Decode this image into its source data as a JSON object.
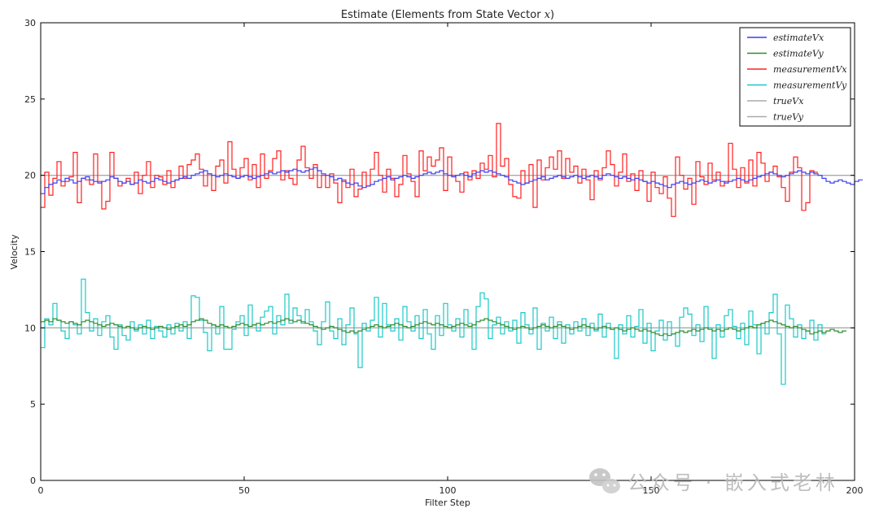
{
  "chart_data": {
    "type": "line",
    "title": "Estimate (Elements from State Vector ",
    "title_math": "x",
    "title_close": ")",
    "xlabel": "Filter Step",
    "ylabel": "Velocity",
    "xlim": [
      0,
      200
    ],
    "ylim": [
      0,
      30
    ],
    "x_ticks": [
      0,
      50,
      100,
      150,
      200
    ],
    "y_ticks": [
      0,
      5,
      10,
      15,
      20,
      25,
      30
    ],
    "grid": false,
    "legend_position": "top-right",
    "series": [
      {
        "name": "estimateVx",
        "color": "#3b3bf0",
        "step": true,
        "values": [
          18.8,
          19.2,
          19.4,
          19.5,
          19.7,
          19.6,
          19.8,
          19.7,
          19.5,
          19.6,
          19.8,
          19.9,
          19.7,
          19.6,
          19.5,
          19.6,
          19.7,
          19.9,
          19.8,
          19.6,
          19.5,
          19.6,
          19.4,
          19.5,
          19.7,
          19.6,
          19.5,
          19.6,
          19.8,
          19.7,
          19.6,
          19.5,
          19.6,
          19.7,
          19.8,
          19.9,
          19.8,
          20.0,
          20.1,
          20.2,
          20.3,
          20.1,
          20.0,
          19.9,
          20.0,
          20.1,
          20.0,
          19.9,
          19.8,
          19.9,
          20.0,
          19.9,
          19.8,
          19.9,
          20.0,
          20.1,
          20.2,
          20.1,
          20.2,
          20.3,
          20.2,
          20.3,
          20.4,
          20.3,
          20.2,
          20.3,
          20.4,
          20.5,
          20.3,
          20.1,
          20.0,
          19.9,
          19.7,
          19.8,
          19.6,
          19.5,
          19.4,
          19.5,
          19.3,
          19.2,
          19.3,
          19.4,
          19.6,
          19.7,
          19.8,
          19.9,
          19.7,
          19.8,
          19.9,
          20.0,
          19.9,
          19.8,
          19.9,
          20.0,
          20.1,
          20.2,
          20.1,
          20.2,
          20.3,
          20.1,
          20.0,
          19.9,
          20.0,
          20.1,
          20.0,
          19.9,
          20.1,
          20.2,
          20.3,
          20.2,
          20.3,
          20.2,
          20.1,
          20.0,
          19.9,
          19.7,
          19.6,
          19.5,
          19.4,
          19.5,
          19.6,
          19.7,
          19.8,
          19.9,
          19.7,
          19.8,
          19.9,
          20.0,
          19.9,
          19.8,
          19.9,
          20.0,
          19.9,
          19.8,
          19.9,
          20.0,
          19.9,
          19.8,
          20.0,
          20.1,
          20.0,
          19.9,
          19.8,
          19.9,
          19.8,
          19.7,
          19.8,
          19.7,
          19.6,
          19.5,
          19.6,
          19.5,
          19.4,
          19.3,
          19.2,
          19.4,
          19.5,
          19.6,
          19.5,
          19.4,
          19.5,
          19.6,
          19.7,
          19.6,
          19.5,
          19.6,
          19.7,
          19.6,
          19.5,
          19.6,
          19.7,
          19.8,
          19.7,
          19.6,
          19.7,
          19.8,
          19.9,
          20.0,
          20.1,
          20.2,
          20.1,
          20.0,
          19.9,
          20.0,
          20.1,
          20.2,
          20.3,
          20.2,
          20.1,
          20.2,
          20.1,
          20.0,
          19.8,
          19.6,
          19.5,
          19.6,
          19.7,
          19.6,
          19.5,
          19.4,
          19.6,
          19.7
        ]
      },
      {
        "name": "estimateVy",
        "color": "#2e8b2e",
        "step": true,
        "values": [
          10.4,
          10.5,
          10.4,
          10.6,
          10.5,
          10.4,
          10.3,
          10.4,
          10.3,
          10.2,
          10.4,
          10.5,
          10.4,
          10.3,
          10.2,
          10.1,
          10.2,
          10.3,
          10.2,
          10.1,
          10.0,
          10.1,
          10.0,
          9.9,
          10.0,
          10.1,
          10.0,
          9.9,
          10.0,
          10.1,
          10.0,
          9.9,
          10.0,
          10.1,
          10.2,
          10.1,
          10.2,
          10.4,
          10.5,
          10.6,
          10.5,
          10.3,
          10.2,
          10.1,
          10.2,
          10.1,
          10.0,
          10.1,
          10.2,
          10.3,
          10.2,
          10.1,
          10.2,
          10.3,
          10.2,
          10.3,
          10.4,
          10.3,
          10.4,
          10.5,
          10.6,
          10.5,
          10.4,
          10.5,
          10.4,
          10.3,
          10.2,
          10.1,
          10.0,
          9.9,
          10.0,
          10.1,
          10.0,
          9.9,
          9.8,
          9.7,
          9.8,
          9.7,
          9.8,
          9.9,
          10.0,
          10.1,
          10.2,
          10.1,
          10.0,
          10.1,
          10.2,
          10.3,
          10.2,
          10.1,
          10.0,
          10.1,
          10.2,
          10.3,
          10.4,
          10.3,
          10.2,
          10.3,
          10.2,
          10.1,
          10.0,
          10.1,
          10.2,
          10.3,
          10.2,
          10.1,
          10.2,
          10.4,
          10.5,
          10.6,
          10.5,
          10.4,
          10.3,
          10.2,
          10.1,
          10.0,
          9.9,
          10.0,
          10.1,
          10.0,
          9.9,
          10.0,
          10.1,
          10.2,
          10.1,
          10.0,
          10.1,
          10.2,
          10.1,
          10.0,
          9.9,
          10.0,
          10.1,
          10.2,
          10.1,
          10.0,
          9.9,
          10.0,
          10.1,
          10.0,
          9.9,
          10.0,
          9.9,
          9.8,
          9.9,
          10.0,
          9.9,
          9.8,
          9.9,
          9.8,
          9.7,
          9.6,
          9.5,
          9.6,
          9.5,
          9.6,
          9.7,
          9.8,
          9.7,
          9.8,
          9.9,
          9.8,
          9.9,
          10.0,
          9.9,
          9.8,
          9.9,
          9.8,
          9.9,
          10.0,
          9.9,
          9.8,
          9.9,
          10.0,
          10.1,
          10.0,
          10.2,
          10.3,
          10.4,
          10.5,
          10.4,
          10.3,
          10.2,
          10.1,
          10.0,
          10.1,
          10.0,
          9.9,
          9.8,
          9.6,
          9.7,
          9.8,
          9.7,
          9.8,
          9.9,
          9.8,
          9.7,
          9.8
        ]
      },
      {
        "name": "measurementVx",
        "color": "#ff2020",
        "step": true,
        "values": [
          17.9,
          20.2,
          18.7,
          19.8,
          20.9,
          19.3,
          19.6,
          19.9,
          21.5,
          18.2,
          19.8,
          19.7,
          19.4,
          21.4,
          19.6,
          17.8,
          18.3,
          21.5,
          19.8,
          19.3,
          19.5,
          19.8,
          19.4,
          20.2,
          18.8,
          20.0,
          20.9,
          19.2,
          20.0,
          19.9,
          19.4,
          20.3,
          19.2,
          19.7,
          20.6,
          19.8,
          20.7,
          21.0,
          21.4,
          20.4,
          19.3,
          20.1,
          19.0,
          20.6,
          21.0,
          19.5,
          22.2,
          20.4,
          19.8,
          20.5,
          21.1,
          19.7,
          20.7,
          19.2,
          21.4,
          19.8,
          20.3,
          21.1,
          21.6,
          19.7,
          20.3,
          19.8,
          19.4,
          21.0,
          21.9,
          20.5,
          19.8,
          20.7,
          19.2,
          20.0,
          19.2,
          20.1,
          19.5,
          18.2,
          19.7,
          19.2,
          20.4,
          18.6,
          19.1,
          20.2,
          19.3,
          20.4,
          21.5,
          20.0,
          18.9,
          20.4,
          19.8,
          18.6,
          19.4,
          21.3,
          20.1,
          19.6,
          18.6,
          21.6,
          20.3,
          21.2,
          20.6,
          21.0,
          21.8,
          19.0,
          21.2,
          20.0,
          19.6,
          18.9,
          20.2,
          19.7,
          20.3,
          19.8,
          20.8,
          20.4,
          21.3,
          19.9,
          23.4,
          20.6,
          21.1,
          19.4,
          18.6,
          18.5,
          20.3,
          19.5,
          20.7,
          17.9,
          21.0,
          19.7,
          20.5,
          21.2,
          20.4,
          21.6,
          19.8,
          21.1,
          20.2,
          20.6,
          19.5,
          20.4,
          19.7,
          18.4,
          20.3,
          19.7,
          20.5,
          21.6,
          20.7,
          19.3,
          20.2,
          21.4,
          19.6,
          20.1,
          19.0,
          20.3,
          19.6,
          18.3,
          20.2,
          19.2,
          18.8,
          19.9,
          18.5,
          17.3,
          21.2,
          20.0,
          19.1,
          19.8,
          18.1,
          20.9,
          19.9,
          19.4,
          20.8,
          19.7,
          20.2,
          19.3,
          19.6,
          22.1,
          20.4,
          19.2,
          20.5,
          19.5,
          21.0,
          19.3,
          21.5,
          20.8,
          19.6,
          20.2,
          20.6,
          19.9,
          19.2,
          18.3,
          20.2,
          21.2,
          20.5,
          17.7,
          18.2,
          20.3,
          20.2
        ]
      },
      {
        "name": "measurementVy",
        "color": "#1ac8c8",
        "step": true,
        "values": [
          8.7,
          10.6,
          10.2,
          11.6,
          10.5,
          9.8,
          9.3,
          10.4,
          10.2,
          9.6,
          13.2,
          11.0,
          9.8,
          10.6,
          9.5,
          10.4,
          10.8,
          9.4,
          8.6,
          10.2,
          9.5,
          9.2,
          10.4,
          9.8,
          10.2,
          9.6,
          10.5,
          9.3,
          10.1,
          9.8,
          9.4,
          10.2,
          9.6,
          10.3,
          9.8,
          10.4,
          9.3,
          12.1,
          12.0,
          10.5,
          9.7,
          8.5,
          10.2,
          9.6,
          11.4,
          8.6,
          8.6,
          9.9,
          10.4,
          10.8,
          9.5,
          11.5,
          10.2,
          9.8,
          10.7,
          11.1,
          11.4,
          9.6,
          10.8,
          10.2,
          12.2,
          10.3,
          11.3,
          10.8,
          10.3,
          11.2,
          10.4,
          9.8,
          8.9,
          10.4,
          11.7,
          9.8,
          9.3,
          10.6,
          8.9,
          10.2,
          11.3,
          9.6,
          7.4,
          10.3,
          9.8,
          10.5,
          12.0,
          9.4,
          11.6,
          10.2,
          9.8,
          10.6,
          9.2,
          11.4,
          10.4,
          9.8,
          10.8,
          9.3,
          11.2,
          9.6,
          8.6,
          10.8,
          9.5,
          11.6,
          10.2,
          9.8,
          10.6,
          9.4,
          11.2,
          10.3,
          8.6,
          11.4,
          12.3,
          11.9,
          9.3,
          10.2,
          10.7,
          9.6,
          10.4,
          9.8,
          10.5,
          9.0,
          11.0,
          10.2,
          9.6,
          11.3,
          8.6,
          10.3,
          9.8,
          10.7,
          9.3,
          10.4,
          9.0,
          10.2,
          9.6,
          10.4,
          9.8,
          10.6,
          9.5,
          10.3,
          9.8,
          10.9,
          9.4,
          10.3,
          9.9,
          8.0,
          10.2,
          9.6,
          10.8,
          9.4,
          10.1,
          11.2,
          9.0,
          10.3,
          8.5,
          9.8,
          10.5,
          9.2,
          10.4,
          9.6,
          8.8,
          10.7,
          11.3,
          10.9,
          9.5,
          10.2,
          9.1,
          11.4,
          10.0,
          8.0,
          10.2,
          9.4,
          10.8,
          11.2,
          10.1,
          9.3,
          10.3,
          8.9,
          11.1,
          10.2,
          8.3,
          10.3,
          9.6,
          11.0,
          12.2,
          9.6,
          6.3,
          11.5,
          10.6,
          9.4,
          10.2,
          9.3,
          9.8,
          10.5,
          9.2,
          10.2,
          9.6
        ]
      },
      {
        "name": "trueVx",
        "color": "#aaaaaa",
        "step": false,
        "values": [
          20,
          20
        ]
      },
      {
        "name": "trueVy",
        "color": "#aaaaaa",
        "step": false,
        "values": [
          10,
          10
        ]
      }
    ]
  },
  "legend": {
    "items": [
      {
        "label": "estimateVx",
        "color": "#3b3bf0"
      },
      {
        "label": "estimateVy",
        "color": "#2e8b2e"
      },
      {
        "label": "measurementVx",
        "color": "#ff2020"
      },
      {
        "label": "measurementVy",
        "color": "#1ac8c8"
      },
      {
        "label": "trueVx",
        "color": "#aaaaaa"
      },
      {
        "label": "trueVy",
        "color": "#aaaaaa"
      }
    ]
  },
  "watermark": {
    "text": "公众号 · 嵌入式老林",
    "icon": "wechat-icon"
  }
}
